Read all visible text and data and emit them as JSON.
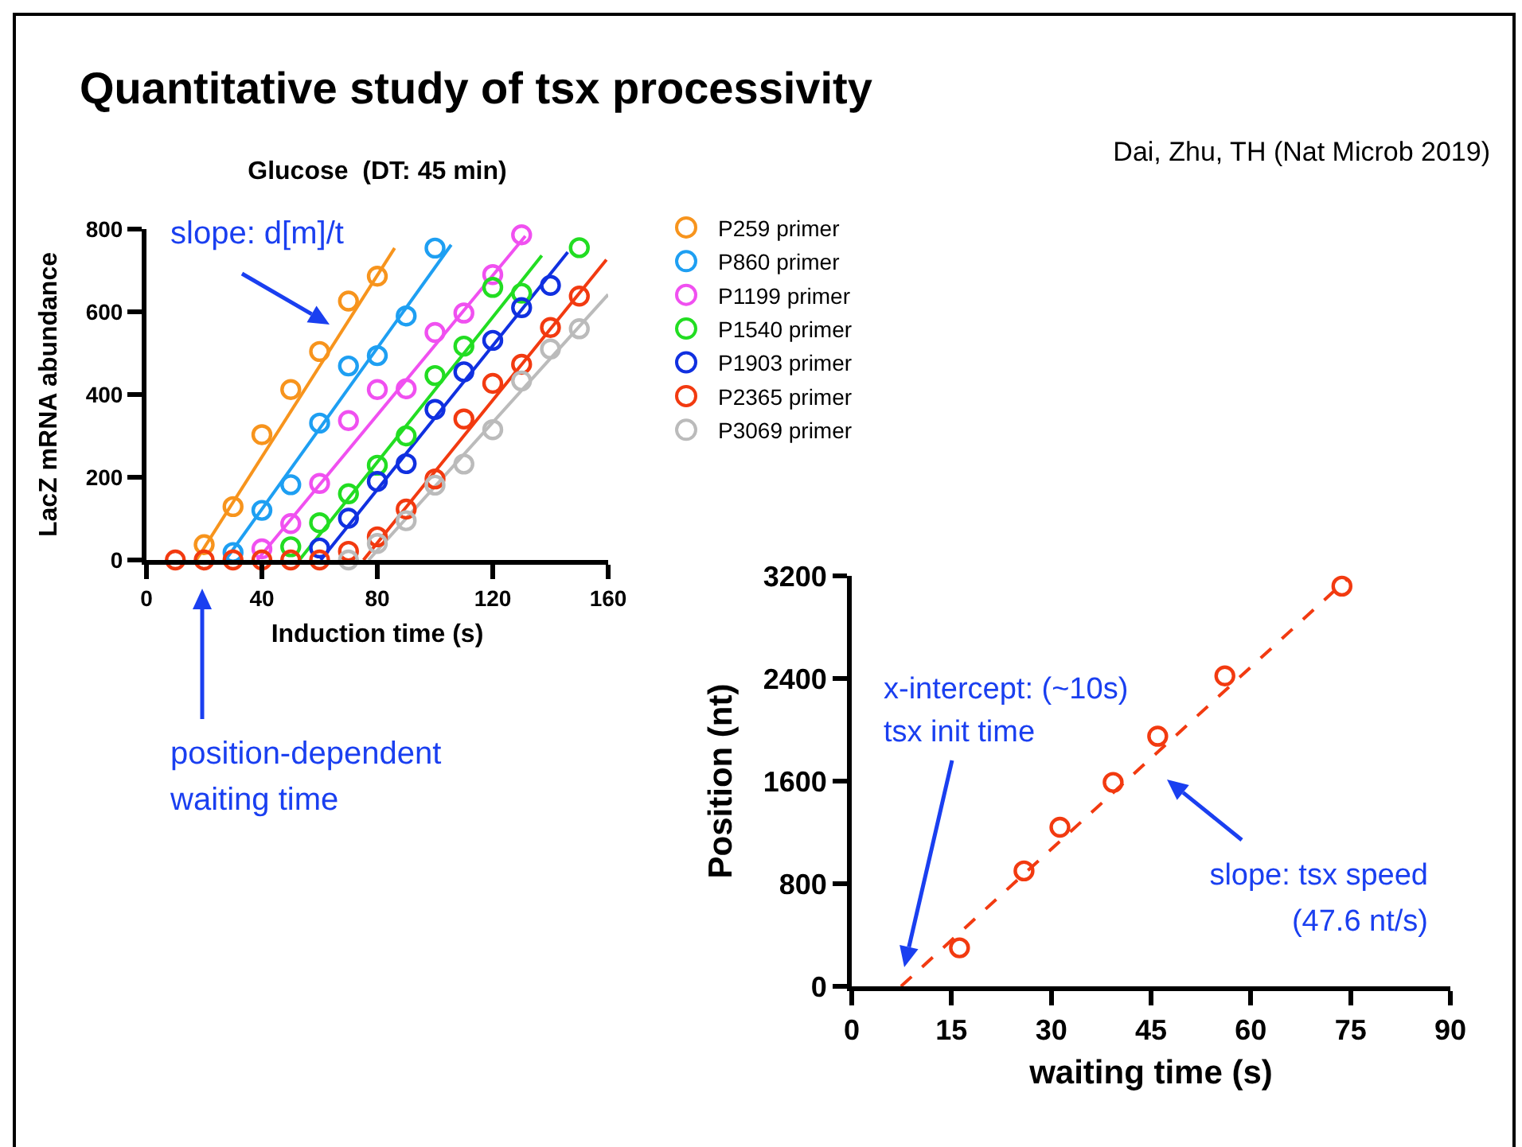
{
  "chart_data": [
    {
      "type": "scatter",
      "title": "Quantitative study of tsx processivity",
      "subtitle": "Glucose  (DT: 45 min)",
      "xlabel": "Induction time (s)",
      "ylabel": "LacZ mRNA abundance",
      "xlim": [
        0,
        160
      ],
      "xticks": [
        0,
        40,
        80,
        120,
        160
      ],
      "ylim": [
        0,
        800
      ],
      "yticks": [
        0,
        200,
        400,
        600,
        800
      ],
      "grid": false,
      "legend": "top right",
      "marker": "circle",
      "line_style": "solid",
      "series": [
        {
          "name": "P259 primer",
          "color": "#f7941d",
          "x": [
            20,
            30,
            40,
            50,
            60,
            70,
            80
          ],
          "values": [
            37,
            129,
            303,
            412,
            504,
            626,
            686
          ]
        },
        {
          "name": "P860 primer",
          "color": "#1e9ff2",
          "x": [
            30,
            40,
            50,
            60,
            70,
            80,
            90,
            100
          ],
          "values": [
            18,
            120,
            182,
            331,
            469,
            494,
            590,
            754
          ]
        },
        {
          "name": "P1199 primer",
          "color": "#f050f0",
          "x": [
            40,
            50,
            60,
            70,
            80,
            90,
            100,
            110,
            120,
            130
          ],
          "values": [
            27,
            88,
            185,
            337,
            412,
            414,
            550,
            597,
            690,
            786
          ]
        },
        {
          "name": "P1540 primer",
          "color": "#22dd22",
          "x": [
            50,
            60,
            70,
            80,
            90,
            100,
            110,
            120,
            130,
            150
          ],
          "values": [
            32,
            90,
            160,
            229,
            300,
            446,
            517,
            659,
            645,
            755
          ]
        },
        {
          "name": "P1903 primer",
          "color": "#1030e0",
          "x": [
            60,
            70,
            80,
            90,
            100,
            110,
            120,
            130,
            140
          ],
          "values": [
            29,
            101,
            190,
            233,
            364,
            455,
            531,
            610,
            664
          ]
        },
        {
          "name": "P2365 primer",
          "color": "#f23a10",
          "x": [
            10,
            20,
            30,
            40,
            50,
            60,
            70,
            80,
            90,
            100,
            110,
            120,
            130,
            140,
            150
          ],
          "values": [
            0,
            0,
            0,
            0,
            0,
            0,
            21,
            56,
            123,
            196,
            341,
            427,
            473,
            562,
            638
          ]
        },
        {
          "name": "P3069 primer",
          "color": "#bbbbbb",
          "x": [
            70,
            80,
            90,
            100,
            110,
            120,
            130,
            140,
            150
          ],
          "values": [
            0,
            40,
            95,
            181,
            232,
            315,
            433,
            510,
            559
          ]
        },
        {
          "type": "line",
          "marker": "none",
          "color": "#f7941d",
          "x": [
            17.3,
            86
          ],
          "values": [
            0,
            754
          ]
        },
        {
          "type": "line",
          "marker": "none",
          "color": "#1e9ff2",
          "x": [
            27.4,
            105.6
          ],
          "values": [
            0,
            762
          ]
        },
        {
          "type": "line",
          "marker": "none",
          "color": "#f050f0",
          "x": [
            38.4,
            131.3
          ],
          "values": [
            0,
            783
          ]
        },
        {
          "type": "line",
          "marker": "none",
          "color": "#22dd22",
          "x": [
            53,
            137
          ],
          "values": [
            0,
            736
          ]
        },
        {
          "type": "line",
          "marker": "none",
          "color": "#1030e0",
          "x": [
            60.4,
            146
          ],
          "values": [
            0,
            744
          ]
        },
        {
          "type": "line",
          "marker": "none",
          "color": "#f23a10",
          "x": [
            75.2,
            159.4
          ],
          "values": [
            0,
            726
          ]
        },
        {
          "type": "line",
          "marker": "none",
          "color": "#bbbbbb",
          "x": [
            77,
            160
          ],
          "values": [
            0,
            642
          ]
        }
      ],
      "annotations": [
        "slope: d[m]/t",
        "position-dependent\nwaiting time",
        "Dai, Zhu, TH (Nat Microb 2019)"
      ]
    },
    {
      "type": "scatter",
      "xlabel": "waiting time (s)",
      "ylabel": "Position (nt)",
      "xlim": [
        0,
        90
      ],
      "xticks": [
        0,
        15,
        30,
        45,
        60,
        75,
        90
      ],
      "ylim": [
        0,
        3200
      ],
      "yticks": [
        0,
        800,
        1600,
        2400,
        3200
      ],
      "grid": false,
      "legend": false,
      "marker": "circle",
      "line_style": "dashed",
      "series": [
        {
          "color": "#f23a10",
          "x": [
            16.2,
            25.9,
            31.3,
            39.3,
            46,
            56.1,
            73.7
          ],
          "values": [
            300,
            900,
            1240,
            1590,
            1950,
            2420,
            3120
          ]
        },
        {
          "type": "line",
          "marker": "none",
          "color": "#f23a10",
          "x": [
            7.4,
            74.6
          ],
          "values": [
            0,
            3180
          ]
        }
      ],
      "annotations": [
        "x-intercept: (~10s)\ntsx init time",
        "slope: tsx speed\n(47.6 nt/s)"
      ]
    }
  ]
}
